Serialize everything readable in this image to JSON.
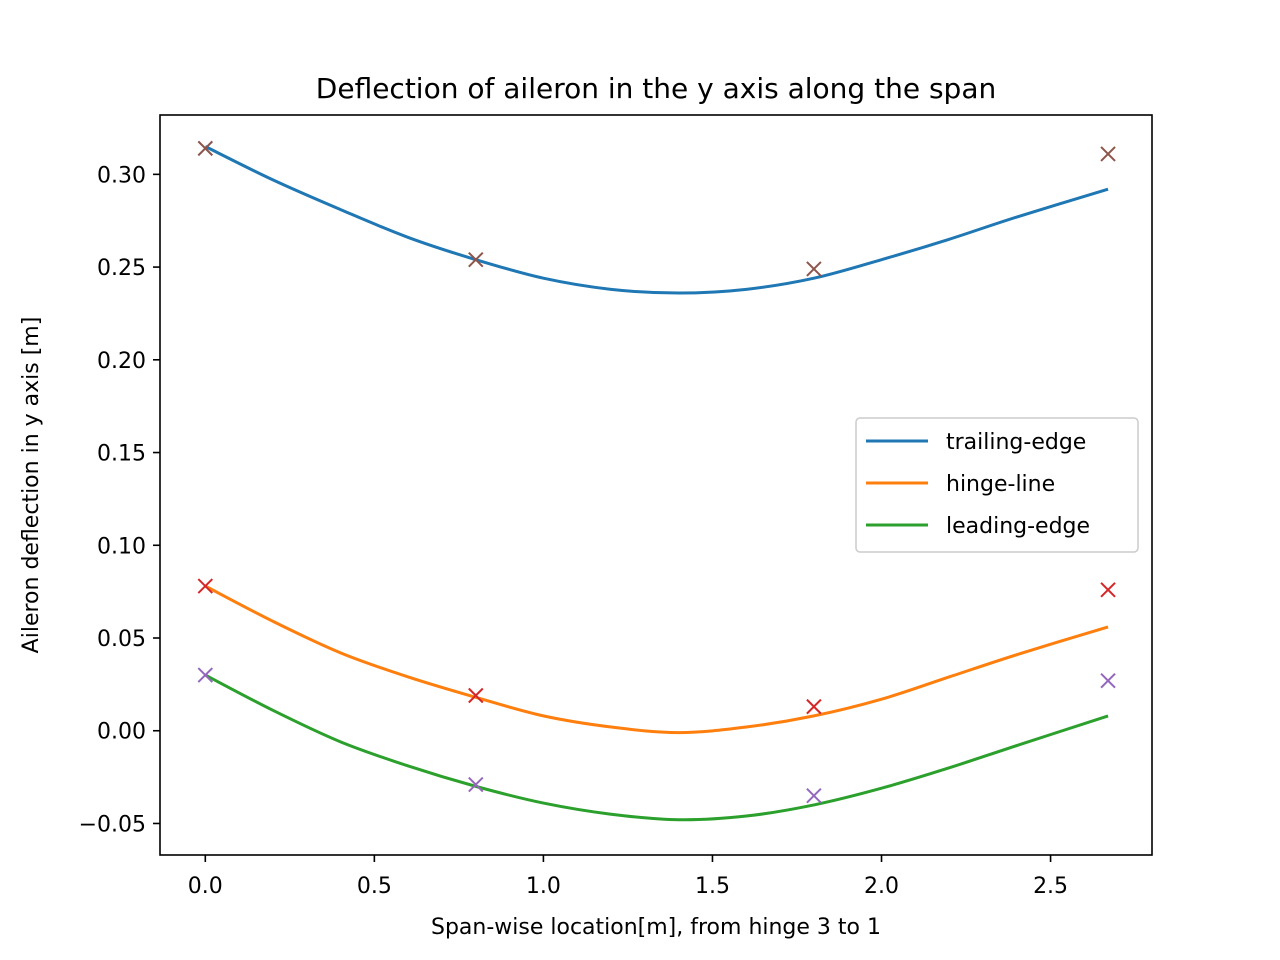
{
  "chart_data": {
    "type": "line",
    "title": "Deflection of aileron in the y axis along the span",
    "xlabel": "Span-wise location[m], from hinge 3 to 1",
    "ylabel": "Aileron deflection in y axis [m]",
    "xlim": [
      -0.134,
      2.8
    ],
    "ylim": [
      -0.067,
      0.332
    ],
    "xticks": [
      0.0,
      0.5,
      1.0,
      1.5,
      2.0,
      2.5
    ],
    "xtick_labels": [
      "0.0",
      "0.5",
      "1.0",
      "1.5",
      "2.0",
      "2.5"
    ],
    "yticks": [
      -0.05,
      0.0,
      0.05,
      0.1,
      0.15,
      0.2,
      0.25,
      0.3
    ],
    "ytick_labels": [
      "−0.05",
      "0.00",
      "0.05",
      "0.10",
      "0.15",
      "0.20",
      "0.25",
      "0.30"
    ],
    "grid": false,
    "legend_position": "center-right",
    "series": [
      {
        "name": "trailing-edge",
        "color": "#1f77b4",
        "x": [
          0.0,
          0.2,
          0.4,
          0.6,
          0.8,
          1.0,
          1.2,
          1.4,
          1.6,
          1.8,
          2.0,
          2.2,
          2.4,
          2.67
        ],
        "y": [
          0.315,
          0.297,
          0.281,
          0.266,
          0.254,
          0.244,
          0.238,
          0.236,
          0.238,
          0.244,
          0.254,
          0.265,
          0.277,
          0.292
        ]
      },
      {
        "name": "hinge-line",
        "color": "#ff7f0e",
        "x": [
          0.0,
          0.2,
          0.4,
          0.6,
          0.8,
          1.0,
          1.2,
          1.4,
          1.6,
          1.8,
          2.0,
          2.2,
          2.4,
          2.67
        ],
        "y": [
          0.078,
          0.059,
          0.042,
          0.029,
          0.018,
          0.008,
          0.002,
          -0.001,
          0.002,
          0.008,
          0.017,
          0.029,
          0.041,
          0.056
        ]
      },
      {
        "name": "leading-edge",
        "color": "#2ca02c",
        "x": [
          0.0,
          0.2,
          0.4,
          0.6,
          0.8,
          1.0,
          1.2,
          1.4,
          1.6,
          1.8,
          2.0,
          2.2,
          2.4,
          2.67
        ],
        "y": [
          0.03,
          0.011,
          -0.006,
          -0.019,
          -0.03,
          -0.039,
          -0.045,
          -0.048,
          -0.046,
          -0.04,
          -0.031,
          -0.02,
          -0.008,
          0.008
        ]
      }
    ],
    "markers": [
      {
        "color": "#8c564b",
        "x": [
          0.0,
          0.8,
          1.8,
          2.67
        ],
        "y": [
          0.314,
          0.254,
          0.249,
          0.311
        ]
      },
      {
        "color": "#d62728",
        "x": [
          0.0,
          0.8,
          1.8,
          2.67
        ],
        "y": [
          0.078,
          0.019,
          0.013,
          0.076
        ]
      },
      {
        "color": "#9467bd",
        "x": [
          0.0,
          0.8,
          1.8,
          2.67
        ],
        "y": [
          0.03,
          -0.029,
          -0.035,
          0.027
        ]
      }
    ]
  }
}
